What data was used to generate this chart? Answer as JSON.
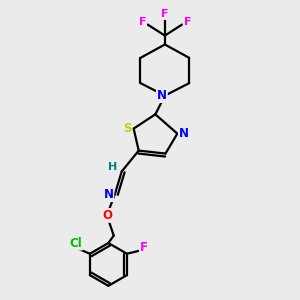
{
  "background_color": "#ebebeb",
  "atom_colors": {
    "C": "#000000",
    "N": "#0000ff",
    "O": "#ff0000",
    "S": "#cccc00",
    "F": "#ff00ff",
    "Cl": "#00bb00",
    "H": "#008080"
  },
  "figsize": [
    3.0,
    3.0
  ],
  "dpi": 100
}
